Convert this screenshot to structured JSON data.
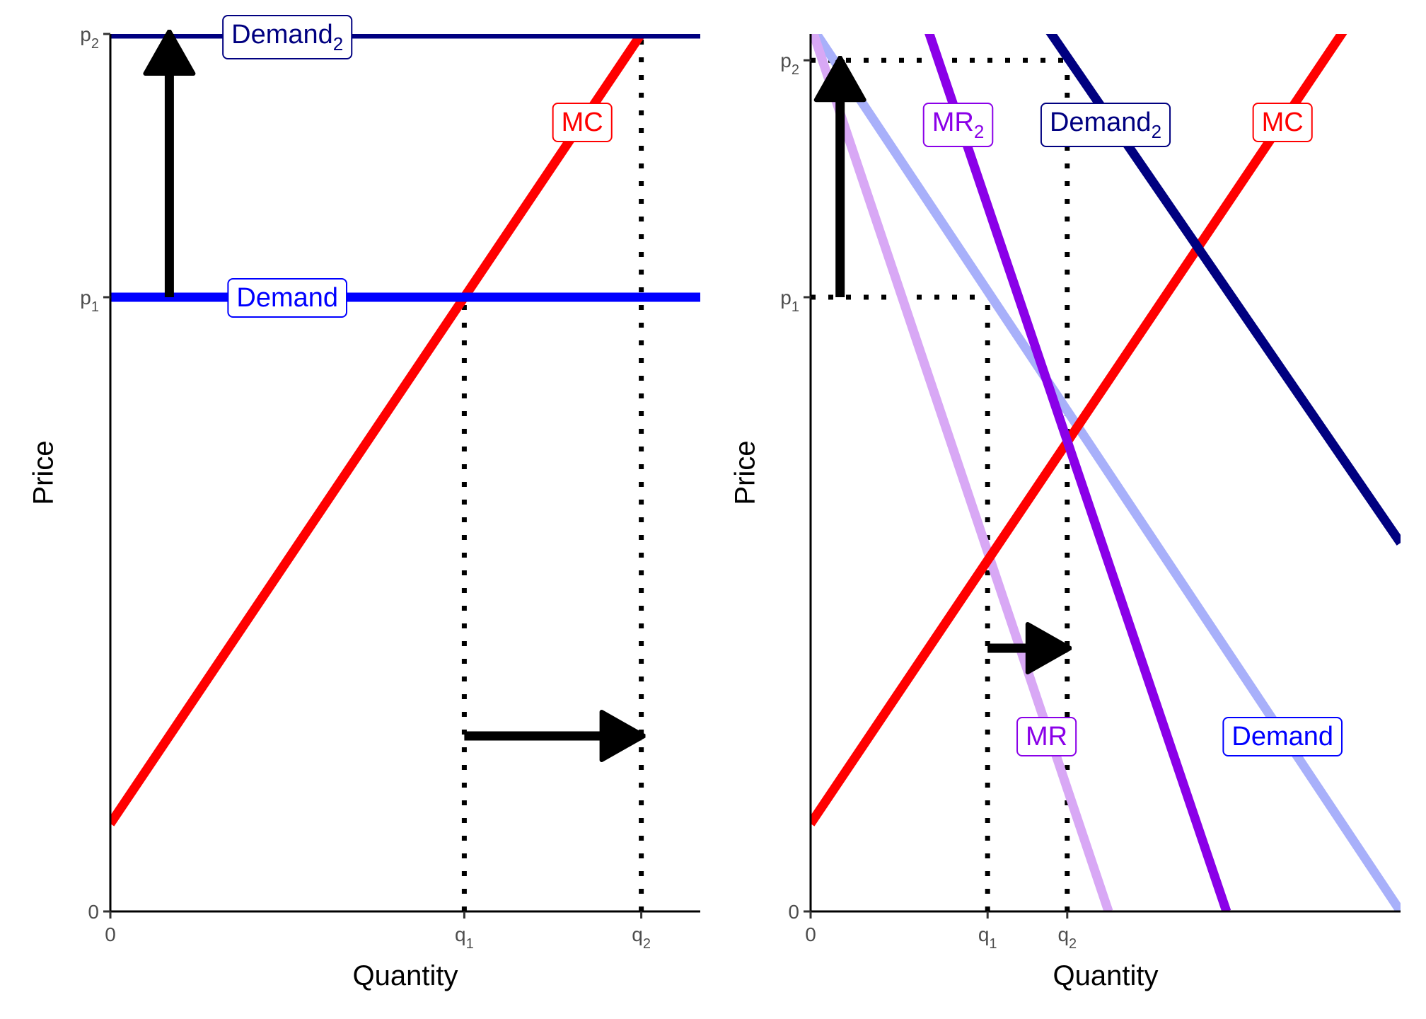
{
  "colors": {
    "demand": "#0000ff",
    "demand2": "#000080",
    "mc": "#ff0000",
    "mr": "#d8a8f5",
    "mr2": "#8a00e8",
    "demand_faded": "#a8b0fa",
    "guides": "#000000",
    "axis": "#000000"
  },
  "chart_data": [
    {
      "type": "line",
      "title": "",
      "xlabel": "Quantity",
      "ylabel": "Price",
      "xlim": [
        0,
        10
      ],
      "ylim": [
        0,
        10
      ],
      "x_ticks": [
        {
          "value": 0,
          "label": "0",
          "sub": ""
        },
        {
          "value": 6,
          "label": "q",
          "sub": "1"
        },
        {
          "value": 9,
          "label": "q",
          "sub": "2"
        }
      ],
      "y_ticks": [
        {
          "value": 0,
          "label": "0",
          "sub": ""
        },
        {
          "value": 7,
          "label": "p",
          "sub": "1"
        },
        {
          "value": 10,
          "label": "p",
          "sub": "2"
        }
      ],
      "series": [
        {
          "name": "MC",
          "color_key": "mc",
          "x": [
            0,
            10
          ],
          "y": [
            1,
            11
          ]
        },
        {
          "name": "Demand",
          "color_key": "demand",
          "x": [
            0,
            10
          ],
          "y": [
            7,
            7
          ]
        },
        {
          "name": "Demand",
          "sub": "2",
          "color_key": "demand2",
          "x": [
            0,
            10
          ],
          "y": [
            10,
            10
          ]
        }
      ],
      "guides": [
        {
          "x": [
            6,
            6
          ],
          "y": [
            0,
            7
          ]
        },
        {
          "x": [
            9,
            9
          ],
          "y": [
            0,
            10
          ]
        }
      ],
      "arrows": [
        {
          "x": [
            1,
            1
          ],
          "y": [
            7,
            10
          ]
        },
        {
          "x": [
            6,
            9
          ],
          "y": [
            2,
            2
          ]
        }
      ],
      "labels": [
        {
          "text": "Demand",
          "sub": "2",
          "color_key": "demand2",
          "x": 3,
          "y": 10
        },
        {
          "text": "MC",
          "sub": "",
          "color_key": "mc",
          "x": 8,
          "y": 9
        },
        {
          "text": "Demand",
          "sub": "",
          "color_key": "demand",
          "x": 3,
          "y": 7
        }
      ]
    },
    {
      "type": "line",
      "title": "",
      "xlabel": "Quantity",
      "ylabel": "Price",
      "xlim": [
        0,
        10
      ],
      "ylim": [
        0,
        10
      ],
      "x_ticks": [
        {
          "value": 0,
          "label": "0",
          "sub": ""
        },
        {
          "value": 3,
          "label": "q",
          "sub": "1"
        },
        {
          "value": 4.35,
          "label": "q",
          "sub": "2"
        }
      ],
      "y_ticks": [
        {
          "value": 0,
          "label": "0",
          "sub": ""
        },
        {
          "value": 7,
          "label": "p",
          "sub": "1"
        },
        {
          "value": 9.7,
          "label": "p",
          "sub": "2"
        }
      ],
      "series": [
        {
          "name": "Demand",
          "color_key": "demand_faded",
          "x": [
            0,
            10
          ],
          "y": [
            10.1,
            0
          ]
        },
        {
          "name": "MR",
          "color_key": "mr",
          "x": [
            0,
            5.05
          ],
          "y": [
            10.1,
            0
          ]
        },
        {
          "name": "MC",
          "color_key": "mc",
          "x": [
            0,
            10
          ],
          "y": [
            1,
            11
          ]
        },
        {
          "name": "MR",
          "sub": "2",
          "color_key": "mr2",
          "x": [
            0,
            7.05
          ],
          "y": [
            14,
            0
          ]
        },
        {
          "name": "Demand",
          "sub": "2",
          "color_key": "demand2",
          "x": [
            0,
            10
          ],
          "y": [
            14,
            4.2
          ]
        }
      ],
      "guides": [
        {
          "x": [
            3,
            3
          ],
          "y": [
            0,
            7
          ]
        },
        {
          "x": [
            0,
            3
          ],
          "y": [
            7,
            7
          ]
        },
        {
          "x": [
            4.35,
            4.35
          ],
          "y": [
            0,
            9.7
          ]
        },
        {
          "x": [
            0,
            4.35
          ],
          "y": [
            9.7,
            9.7
          ]
        }
      ],
      "arrows": [
        {
          "x": [
            0.5,
            0.5
          ],
          "y": [
            7,
            9.7
          ]
        },
        {
          "x": [
            3,
            4.35
          ],
          "y": [
            3,
            3
          ]
        }
      ],
      "labels": [
        {
          "text": "MR",
          "sub": "2",
          "color_key": "mr2",
          "x": 2.5,
          "y": 9
        },
        {
          "text": "Demand",
          "sub": "2",
          "color_key": "demand2",
          "x": 5,
          "y": 9
        },
        {
          "text": "MC",
          "sub": "",
          "color_key": "mc",
          "x": 8,
          "y": 9
        },
        {
          "text": "MR",
          "sub": "",
          "color_key": "mr2",
          "x": 4,
          "y": 2
        },
        {
          "text": "Demand",
          "sub": "",
          "color_key": "demand",
          "x": 8,
          "y": 2
        }
      ]
    }
  ]
}
